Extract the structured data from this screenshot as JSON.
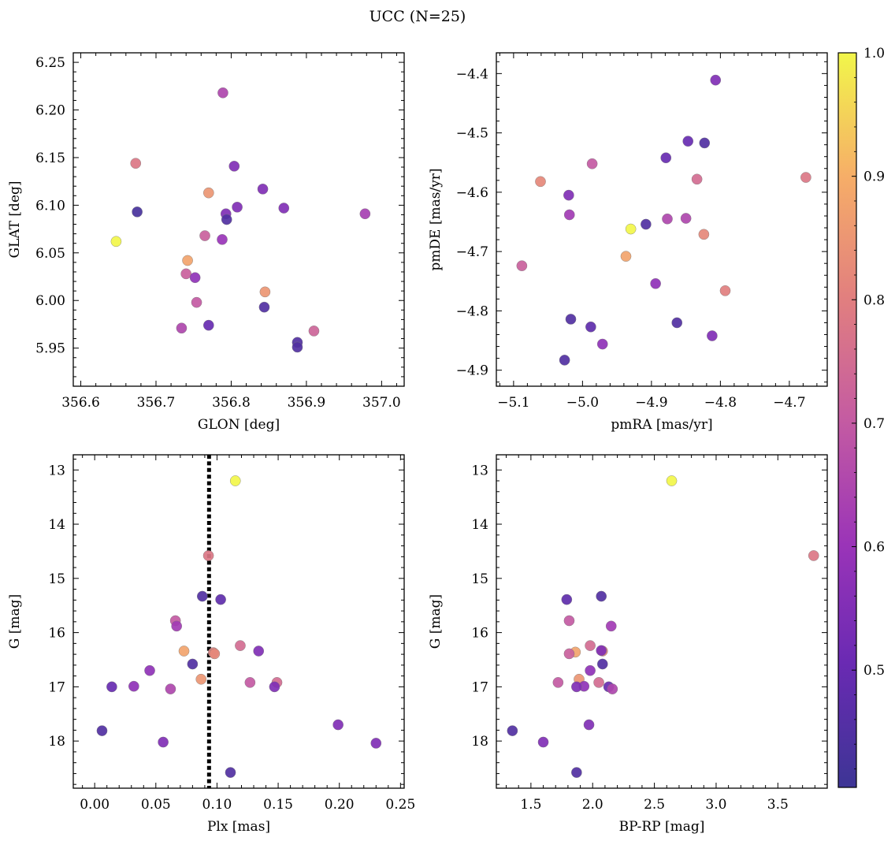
{
  "figure": {
    "title": "UCC (N=25)"
  },
  "colorbar": {
    "tick_labels": [
      "0.5",
      "0.6",
      "0.7",
      "0.8",
      "0.9",
      "1.0"
    ],
    "ticks": [
      0.5,
      0.6,
      0.7,
      0.8,
      0.9,
      1.0
    ],
    "range": [
      0.405,
      1.0
    ],
    "colormap": "plasma (muted)"
  },
  "chart_data": [
    {
      "type": "scatter",
      "panel": "top-left",
      "xlabel": "GLON [deg]",
      "ylabel": "GLAT [deg]",
      "xlim": [
        356.59,
        357.03
      ],
      "ylim": [
        5.91,
        6.26
      ],
      "xticks": [
        356.6,
        356.7,
        356.8,
        356.9,
        357.0
      ],
      "xtick_labels": [
        "356.6",
        "356.7",
        "356.8",
        "356.9",
        "357.0"
      ],
      "yticks": [
        5.95,
        6.0,
        6.05,
        6.1,
        6.15,
        6.2,
        6.25
      ],
      "ytick_labels": [
        "5.95",
        "6.00",
        "6.05",
        "6.10",
        "6.15",
        "6.20",
        "6.25"
      ],
      "points": [
        {
          "x": 356.789,
          "y": 6.218,
          "c": 0.65
        },
        {
          "x": 356.673,
          "y": 6.144,
          "c": 0.78
        },
        {
          "x": 356.804,
          "y": 6.141,
          "c": 0.55
        },
        {
          "x": 356.842,
          "y": 6.117,
          "c": 0.55
        },
        {
          "x": 356.77,
          "y": 6.113,
          "c": 0.85
        },
        {
          "x": 356.808,
          "y": 6.098,
          "c": 0.55
        },
        {
          "x": 356.87,
          "y": 6.097,
          "c": 0.55
        },
        {
          "x": 356.675,
          "y": 6.093,
          "c": 0.43
        },
        {
          "x": 356.978,
          "y": 6.091,
          "c": 0.63
        },
        {
          "x": 356.793,
          "y": 6.091,
          "c": 0.55
        },
        {
          "x": 356.794,
          "y": 6.085,
          "c": 0.45
        },
        {
          "x": 356.765,
          "y": 6.068,
          "c": 0.72
        },
        {
          "x": 356.788,
          "y": 6.064,
          "c": 0.6
        },
        {
          "x": 356.647,
          "y": 6.062,
          "c": 1.0
        },
        {
          "x": 356.742,
          "y": 6.042,
          "c": 0.88
        },
        {
          "x": 356.74,
          "y": 6.028,
          "c": 0.72
        },
        {
          "x": 356.752,
          "y": 6.024,
          "c": 0.58
        },
        {
          "x": 356.845,
          "y": 6.009,
          "c": 0.85
        },
        {
          "x": 356.754,
          "y": 5.998,
          "c": 0.7
        },
        {
          "x": 356.844,
          "y": 5.993,
          "c": 0.45
        },
        {
          "x": 356.77,
          "y": 5.974,
          "c": 0.5
        },
        {
          "x": 356.734,
          "y": 5.971,
          "c": 0.65
        },
        {
          "x": 356.91,
          "y": 5.968,
          "c": 0.73
        },
        {
          "x": 356.888,
          "y": 5.956,
          "c": 0.45
        },
        {
          "x": 356.888,
          "y": 5.951,
          "c": 0.45
        }
      ]
    },
    {
      "type": "scatter",
      "panel": "top-right",
      "xlabel": "pmRA [mas/yr]",
      "ylabel": "pmDE [mas/yr]",
      "xlim": [
        -5.125,
        -4.645
      ],
      "ylim": [
        -4.927,
        -4.365
      ],
      "xticks": [
        -5.1,
        -5.0,
        -4.9,
        -4.8,
        -4.7
      ],
      "xtick_labels": [
        "−5.1",
        "−5.0",
        "−4.9",
        "−4.8",
        "−4.7"
      ],
      "yticks": [
        -4.9,
        -4.8,
        -4.7,
        -4.6,
        -4.5,
        -4.4
      ],
      "ytick_labels": [
        "−4.9",
        "−4.8",
        "−4.7",
        "−4.6",
        "−4.5",
        "−4.4"
      ],
      "points": [
        {
          "x": -4.807,
          "y": -4.411,
          "c": 0.55
        },
        {
          "x": -4.847,
          "y": -4.514,
          "c": 0.5
        },
        {
          "x": -4.823,
          "y": -4.517,
          "c": 0.45
        },
        {
          "x": -4.879,
          "y": -4.542,
          "c": 0.5
        },
        {
          "x": -4.986,
          "y": -4.552,
          "c": 0.7
        },
        {
          "x": -4.676,
          "y": -4.575,
          "c": 0.78
        },
        {
          "x": -4.834,
          "y": -4.578,
          "c": 0.75
        },
        {
          "x": -5.061,
          "y": -4.582,
          "c": 0.82
        },
        {
          "x": -5.02,
          "y": -4.605,
          "c": 0.55
        },
        {
          "x": -5.019,
          "y": -4.638,
          "c": 0.62
        },
        {
          "x": -4.877,
          "y": -4.645,
          "c": 0.65
        },
        {
          "x": -4.85,
          "y": -4.644,
          "c": 0.65
        },
        {
          "x": -4.908,
          "y": -4.654,
          "c": 0.45
        },
        {
          "x": -4.93,
          "y": -4.662,
          "c": 1.0
        },
        {
          "x": -4.824,
          "y": -4.671,
          "c": 0.82
        },
        {
          "x": -4.937,
          "y": -4.708,
          "c": 0.88
        },
        {
          "x": -5.088,
          "y": -4.724,
          "c": 0.72
        },
        {
          "x": -4.894,
          "y": -4.754,
          "c": 0.58
        },
        {
          "x": -4.793,
          "y": -4.766,
          "c": 0.8
        },
        {
          "x": -5.017,
          "y": -4.814,
          "c": 0.45
        },
        {
          "x": -4.863,
          "y": -4.82,
          "c": 0.45
        },
        {
          "x": -4.988,
          "y": -4.827,
          "c": 0.48
        },
        {
          "x": -4.812,
          "y": -4.842,
          "c": 0.55
        },
        {
          "x": -4.971,
          "y": -4.856,
          "c": 0.58
        },
        {
          "x": -5.026,
          "y": -4.883,
          "c": 0.45
        }
      ]
    },
    {
      "type": "scatter",
      "panel": "bottom-left",
      "xlabel": "Plx [mas]",
      "ylabel": "G [mag]",
      "xlim": [
        -0.0175,
        0.253
      ],
      "ylim": [
        18.87,
        12.72
      ],
      "y_inverted": true,
      "xticks": [
        0.0,
        0.05,
        0.1,
        0.15,
        0.2,
        0.25
      ],
      "xtick_labels": [
        "0.00",
        "0.05",
        "0.10",
        "0.15",
        "0.20",
        "0.25"
      ],
      "yticks": [
        13,
        14,
        15,
        16,
        17,
        18
      ],
      "ytick_labels": [
        "13",
        "14",
        "15",
        "16",
        "17",
        "18"
      ],
      "reference_line": {
        "x": 0.0935,
        "style": "dotted"
      },
      "points": [
        {
          "x": 0.115,
          "y": 13.2,
          "c": 1.0
        },
        {
          "x": 0.093,
          "y": 14.58,
          "c": 0.78
        },
        {
          "x": 0.088,
          "y": 15.33,
          "c": 0.45
        },
        {
          "x": 0.103,
          "y": 15.39,
          "c": 0.48
        },
        {
          "x": 0.066,
          "y": 15.78,
          "c": 0.7
        },
        {
          "x": 0.067,
          "y": 15.88,
          "c": 0.62
        },
        {
          "x": 0.119,
          "y": 16.24,
          "c": 0.75
        },
        {
          "x": 0.134,
          "y": 16.34,
          "c": 0.55
        },
        {
          "x": 0.073,
          "y": 16.34,
          "c": 0.88
        },
        {
          "x": 0.097,
          "y": 16.37,
          "c": 0.8
        },
        {
          "x": 0.098,
          "y": 16.39,
          "c": 0.82
        },
        {
          "x": 0.08,
          "y": 16.58,
          "c": 0.45
        },
        {
          "x": 0.045,
          "y": 16.7,
          "c": 0.58
        },
        {
          "x": 0.087,
          "y": 16.86,
          "c": 0.85
        },
        {
          "x": 0.127,
          "y": 16.92,
          "c": 0.7
        },
        {
          "x": 0.149,
          "y": 16.92,
          "c": 0.75
        },
        {
          "x": 0.032,
          "y": 16.99,
          "c": 0.58
        },
        {
          "x": 0.014,
          "y": 17.0,
          "c": 0.5
        },
        {
          "x": 0.147,
          "y": 17.0,
          "c": 0.55
        },
        {
          "x": 0.062,
          "y": 17.04,
          "c": 0.65
        },
        {
          "x": 0.199,
          "y": 17.7,
          "c": 0.55
        },
        {
          "x": 0.006,
          "y": 17.81,
          "c": 0.45
        },
        {
          "x": 0.056,
          "y": 18.02,
          "c": 0.55
        },
        {
          "x": 0.23,
          "y": 18.04,
          "c": 0.55
        },
        {
          "x": 0.111,
          "y": 18.58,
          "c": 0.45
        }
      ]
    },
    {
      "type": "scatter",
      "panel": "bottom-right",
      "xlabel": "BP-RP [mag]",
      "ylabel": "G [mag]",
      "xlim": [
        1.22,
        3.9
      ],
      "ylim": [
        18.87,
        12.72
      ],
      "y_inverted": true,
      "xticks": [
        1.5,
        2.0,
        2.5,
        3.0,
        3.5
      ],
      "xtick_labels": [
        "1.5",
        "2.0",
        "2.5",
        "3.0",
        "3.5"
      ],
      "yticks": [
        13,
        14,
        15,
        16,
        17,
        18
      ],
      "ytick_labels": [
        "13",
        "14",
        "15",
        "16",
        "17",
        "18"
      ],
      "points": [
        {
          "x": 2.64,
          "y": 13.2,
          "c": 1.0
        },
        {
          "x": 3.79,
          "y": 14.58,
          "c": 0.78
        },
        {
          "x": 2.07,
          "y": 15.33,
          "c": 0.45
        },
        {
          "x": 1.79,
          "y": 15.39,
          "c": 0.48
        },
        {
          "x": 1.81,
          "y": 15.78,
          "c": 0.7
        },
        {
          "x": 2.15,
          "y": 15.88,
          "c": 0.62
        },
        {
          "x": 1.98,
          "y": 16.24,
          "c": 0.75
        },
        {
          "x": 2.08,
          "y": 16.34,
          "c": 0.82
        },
        {
          "x": 2.07,
          "y": 16.33,
          "c": 0.55
        },
        {
          "x": 1.86,
          "y": 16.36,
          "c": 0.88
        },
        {
          "x": 1.81,
          "y": 16.39,
          "c": 0.72
        },
        {
          "x": 2.08,
          "y": 16.58,
          "c": 0.45
        },
        {
          "x": 1.98,
          "y": 16.7,
          "c": 0.58
        },
        {
          "x": 1.89,
          "y": 16.86,
          "c": 0.85
        },
        {
          "x": 1.72,
          "y": 16.92,
          "c": 0.7
        },
        {
          "x": 2.05,
          "y": 16.92,
          "c": 0.75
        },
        {
          "x": 1.93,
          "y": 16.99,
          "c": 0.58
        },
        {
          "x": 1.87,
          "y": 17.0,
          "c": 0.55
        },
        {
          "x": 2.13,
          "y": 17.0,
          "c": 0.5
        },
        {
          "x": 2.16,
          "y": 17.04,
          "c": 0.65
        },
        {
          "x": 1.97,
          "y": 17.7,
          "c": 0.55
        },
        {
          "x": 1.35,
          "y": 17.81,
          "c": 0.45
        },
        {
          "x": 1.6,
          "y": 18.02,
          "c": 0.55
        },
        {
          "x": 1.87,
          "y": 18.58,
          "c": 0.45
        }
      ]
    }
  ]
}
